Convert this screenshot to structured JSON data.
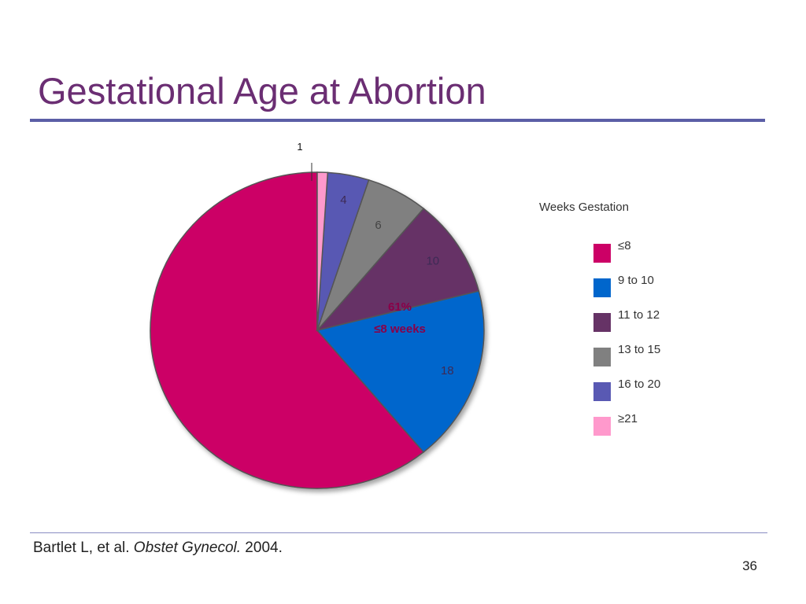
{
  "slide": {
    "title": "Gestational Age at Abortion",
    "citation_author": "Bartlet L, et al. ",
    "citation_journal": "Obstet Gynecol.",
    "citation_year": " 2004.",
    "page_number": "36"
  },
  "chart_data": {
    "type": "pie",
    "legend_title": "Weeks Gestation",
    "legend_position": "right",
    "categories": [
      "≤8",
      "9 to 10",
      "11 to 12",
      "13 to 15",
      "16 to 20",
      "≥21"
    ],
    "values": [
      61,
      18,
      10,
      6,
      4,
      1
    ],
    "data_labels": [
      "61%",
      "18",
      "10",
      "6",
      "4",
      "1"
    ],
    "center_annotation": "≤8 weeks",
    "colors": [
      "#cc0066",
      "#0066cc",
      "#663366",
      "#808080",
      "#5959b3",
      "#ff99cc"
    ]
  }
}
